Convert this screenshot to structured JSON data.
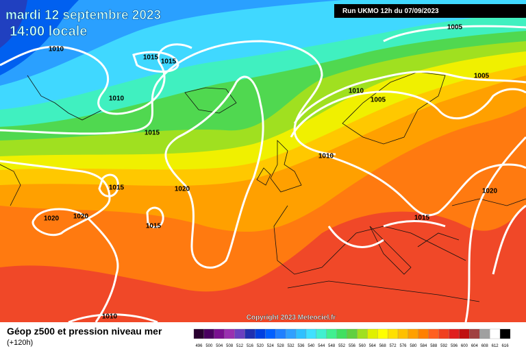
{
  "header": {
    "date": "mardi 12 septembre 2023",
    "time": "14:00 locale",
    "run": "Run UKMO 12h du 07/09/2023"
  },
  "isobar_labels": [
    "1010",
    "1015",
    "1015",
    "1010",
    "1015",
    "1010",
    "1005",
    "1005",
    "1005",
    "1010",
    "1015",
    "1020",
    "1020",
    "1020",
    "1015",
    "1015",
    "1020",
    "1010"
  ],
  "copyright": "Copyright 2023 Meteociel.fr",
  "legend": {
    "title": "Géop z500 et pression niveau mer",
    "lead": "(+120h)",
    "scale": [
      {
        "label": 496,
        "color": "#2a0030"
      },
      {
        "label": 500,
        "color": "#4a0060"
      },
      {
        "label": 504,
        "color": "#7a1090"
      },
      {
        "label": 508,
        "color": "#9a30b0"
      },
      {
        "label": 512,
        "color": "#6a40c0"
      },
      {
        "label": 516,
        "color": "#2030b0"
      },
      {
        "label": 520,
        "color": "#0040e0"
      },
      {
        "label": 524,
        "color": "#0060ff"
      },
      {
        "label": 528,
        "color": "#2080ff"
      },
      {
        "label": 532,
        "color": "#30a0ff"
      },
      {
        "label": 536,
        "color": "#30c0ff"
      },
      {
        "label": 540,
        "color": "#40e0ff"
      },
      {
        "label": 544,
        "color": "#40f0d0"
      },
      {
        "label": 548,
        "color": "#40f090"
      },
      {
        "label": 552,
        "color": "#40e060"
      },
      {
        "label": 556,
        "color": "#60d040"
      },
      {
        "label": 560,
        "color": "#a0e020"
      },
      {
        "label": 564,
        "color": "#e0f000"
      },
      {
        "label": 568,
        "color": "#ffff00"
      },
      {
        "label": 572,
        "color": "#ffe000"
      },
      {
        "label": 576,
        "color": "#ffc000"
      },
      {
        "label": 580,
        "color": "#ffa000"
      },
      {
        "label": 584,
        "color": "#ff8000"
      },
      {
        "label": 588,
        "color": "#ff6020"
      },
      {
        "label": 592,
        "color": "#f04020"
      },
      {
        "label": 596,
        "color": "#e02020"
      },
      {
        "label": 600,
        "color": "#c01010"
      },
      {
        "label": 604,
        "color": "#a04040"
      },
      {
        "label": 608,
        "color": "#a0a0a0"
      },
      {
        "label": 612,
        "color": "#ffffff"
      },
      {
        "label": 616,
        "color": "#000000"
      }
    ]
  }
}
